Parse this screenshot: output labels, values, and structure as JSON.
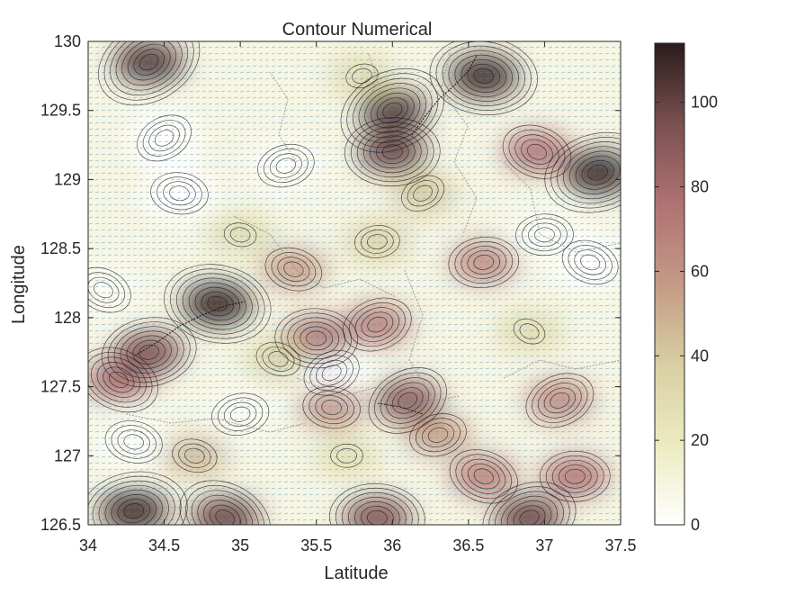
{
  "chart_data": {
    "type": "heatmap",
    "title": "Contour Numerical",
    "xlabel": "Latitude",
    "ylabel": "Longitude",
    "xlim": [
      34,
      37.5
    ],
    "ylim": [
      126.5,
      130
    ],
    "x_ticks": [
      "34",
      "34.5",
      "35",
      "35.5",
      "36",
      "36.5",
      "37",
      "37.5"
    ],
    "y_ticks": [
      "126.5",
      "127",
      "127.5",
      "128",
      "128.5",
      "129",
      "129.5",
      "130"
    ],
    "colorbar": {
      "range": [
        0,
        114
      ],
      "ticks": [
        "0",
        "20",
        "40",
        "60",
        "80",
        "100"
      ],
      "colors": [
        "#ffffff",
        "#ecebc0",
        "#d8cfa2",
        "#c49a86",
        "#b07272",
        "#7a5050",
        "#2a1c1c"
      ]
    },
    "overlays": [
      "filled-contour",
      "contour-lines",
      "vector-arrows",
      "region-boundaries"
    ],
    "grid": false,
    "hotspots": [
      {
        "x": 34.4,
        "y": 129.85,
        "value": 105
      },
      {
        "x": 36.6,
        "y": 129.75,
        "value": 110
      },
      {
        "x": 37.35,
        "y": 129.05,
        "value": 112
      },
      {
        "x": 36.95,
        "y": 129.2,
        "value": 75
      },
      {
        "x": 36.0,
        "y": 129.2,
        "value": 100
      },
      {
        "x": 36.0,
        "y": 129.5,
        "value": 105
      },
      {
        "x": 34.85,
        "y": 128.1,
        "value": 112
      },
      {
        "x": 34.4,
        "y": 127.75,
        "value": 95
      },
      {
        "x": 34.2,
        "y": 127.55,
        "value": 80
      },
      {
        "x": 35.5,
        "y": 127.85,
        "value": 80
      },
      {
        "x": 35.9,
        "y": 127.95,
        "value": 70
      },
      {
        "x": 35.35,
        "y": 128.35,
        "value": 55
      },
      {
        "x": 36.6,
        "y": 128.4,
        "value": 65
      },
      {
        "x": 36.1,
        "y": 127.4,
        "value": 90
      },
      {
        "x": 35.6,
        "y": 127.35,
        "value": 60
      },
      {
        "x": 36.3,
        "y": 127.15,
        "value": 55
      },
      {
        "x": 36.6,
        "y": 126.85,
        "value": 70
      },
      {
        "x": 37.2,
        "y": 126.85,
        "value": 75
      },
      {
        "x": 37.1,
        "y": 127.4,
        "value": 65
      },
      {
        "x": 34.7,
        "y": 127.0,
        "value": 45
      },
      {
        "x": 34.3,
        "y": 126.6,
        "value": 110
      },
      {
        "x": 34.9,
        "y": 126.55,
        "value": 100
      },
      {
        "x": 35.9,
        "y": 126.55,
        "value": 95
      },
      {
        "x": 36.9,
        "y": 126.55,
        "value": 100
      },
      {
        "x": 35.25,
        "y": 127.7,
        "value": 35
      },
      {
        "x": 35.9,
        "y": 128.55,
        "value": 35
      },
      {
        "x": 36.2,
        "y": 128.9,
        "value": 40
      },
      {
        "x": 35.0,
        "y": 128.6,
        "value": 30
      },
      {
        "x": 35.8,
        "y": 129.75,
        "value": 30
      },
      {
        "x": 36.9,
        "y": 127.9,
        "value": 30
      },
      {
        "x": 35.7,
        "y": 127.0,
        "value": 28
      }
    ],
    "lows": [
      {
        "x": 34.5,
        "y": 129.3,
        "value": 0
      },
      {
        "x": 34.6,
        "y": 128.9,
        "value": 0
      },
      {
        "x": 35.3,
        "y": 129.1,
        "value": 2
      },
      {
        "x": 37.3,
        "y": 128.4,
        "value": 0
      },
      {
        "x": 37.0,
        "y": 128.6,
        "value": 3
      },
      {
        "x": 35.6,
        "y": 127.6,
        "value": 0
      },
      {
        "x": 34.3,
        "y": 127.1,
        "value": 2
      },
      {
        "x": 35.0,
        "y": 127.3,
        "value": 4
      },
      {
        "x": 34.1,
        "y": 128.2,
        "value": 4
      }
    ]
  }
}
